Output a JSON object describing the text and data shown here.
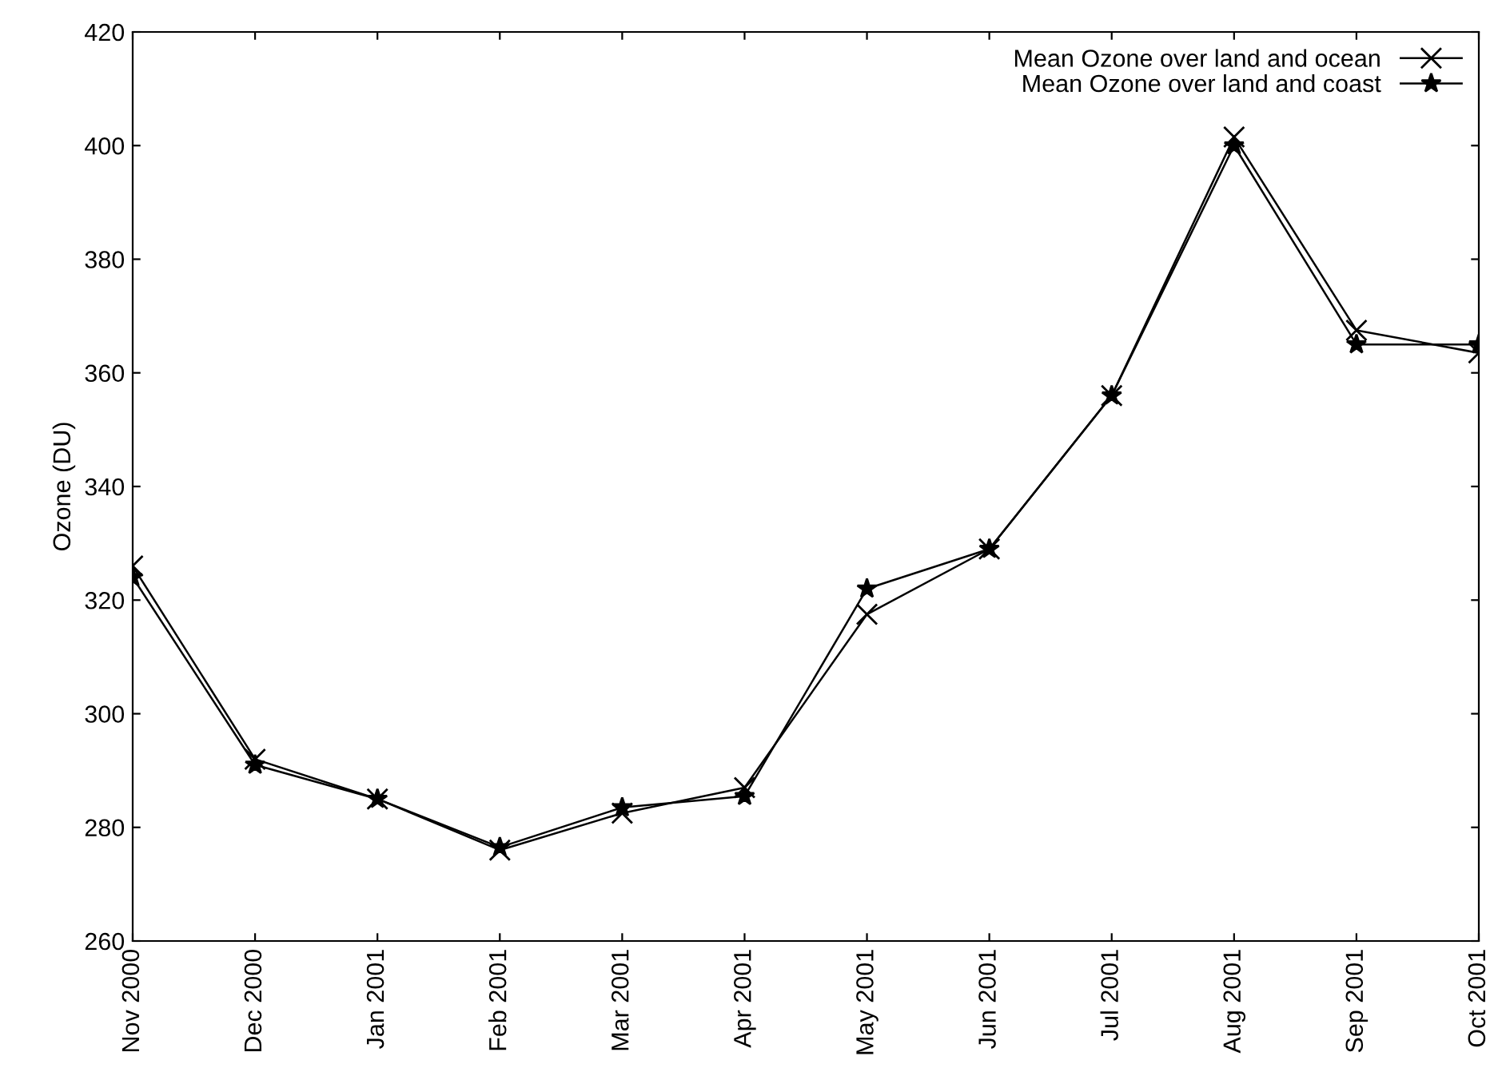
{
  "chart_data": {
    "type": "line",
    "ylabel": "Ozone (DU)",
    "categories": [
      "Nov 2000",
      "Dec 2000",
      "Jan 2001",
      "Feb 2001",
      "Mar 2001",
      "Apr 2001",
      "May 2001",
      "Jun 2001",
      "Jul 2001",
      "Aug 2001",
      "Sep 2001",
      "Oct 2001"
    ],
    "series": [
      {
        "name": "Mean Ozone over land and ocean",
        "color": "#000000",
        "marker": "cross",
        "values": [
          326,
          292,
          285,
          276,
          282.5,
          287,
          317.5,
          329,
          356,
          401.5,
          367.5,
          363.5
        ]
      },
      {
        "name": "Mean Ozone over land and coast",
        "color": "#000000",
        "marker": "star",
        "values": [
          324,
          291,
          285,
          276.5,
          283.5,
          285.5,
          322,
          329,
          356,
          400,
          365,
          365
        ]
      }
    ],
    "ylim": [
      260,
      420
    ],
    "yticks": [
      260,
      280,
      300,
      320,
      340,
      360,
      380,
      400,
      420
    ],
    "grid": false,
    "legend": "top right",
    "line_style": "solid"
  }
}
